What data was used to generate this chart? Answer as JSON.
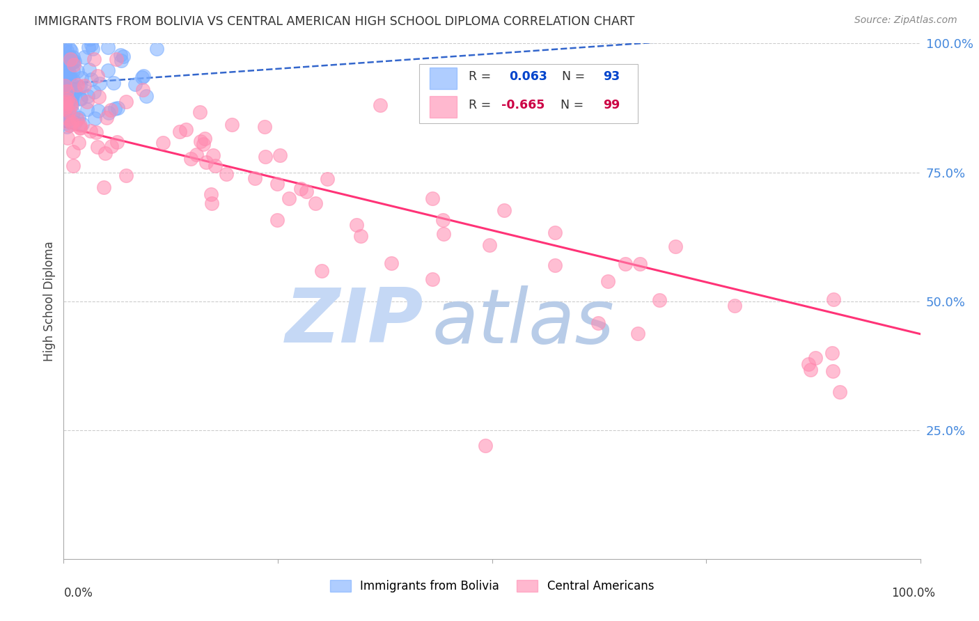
{
  "title": "IMMIGRANTS FROM BOLIVIA VS CENTRAL AMERICAN HIGH SCHOOL DIPLOMA CORRELATION CHART",
  "source": "Source: ZipAtlas.com",
  "ylabel": "High School Diploma",
  "bolivia_R": 0.063,
  "bolivia_N": 93,
  "central_R": -0.665,
  "central_N": 99,
  "bolivia_color": "#7aadff",
  "central_color": "#ff8ab0",
  "bolivia_line_color": "#3366cc",
  "central_line_color": "#ff3377",
  "legend_R_color": "#0044cc",
  "legend_R2_color": "#cc0044",
  "ytick_color": "#4488dd",
  "watermark_zip_color": "#c5d8f5",
  "watermark_atlas_color": "#b8cce8",
  "background": "#ffffff",
  "grid_color": "#cccccc",
  "title_color": "#333333",
  "source_color": "#888888"
}
